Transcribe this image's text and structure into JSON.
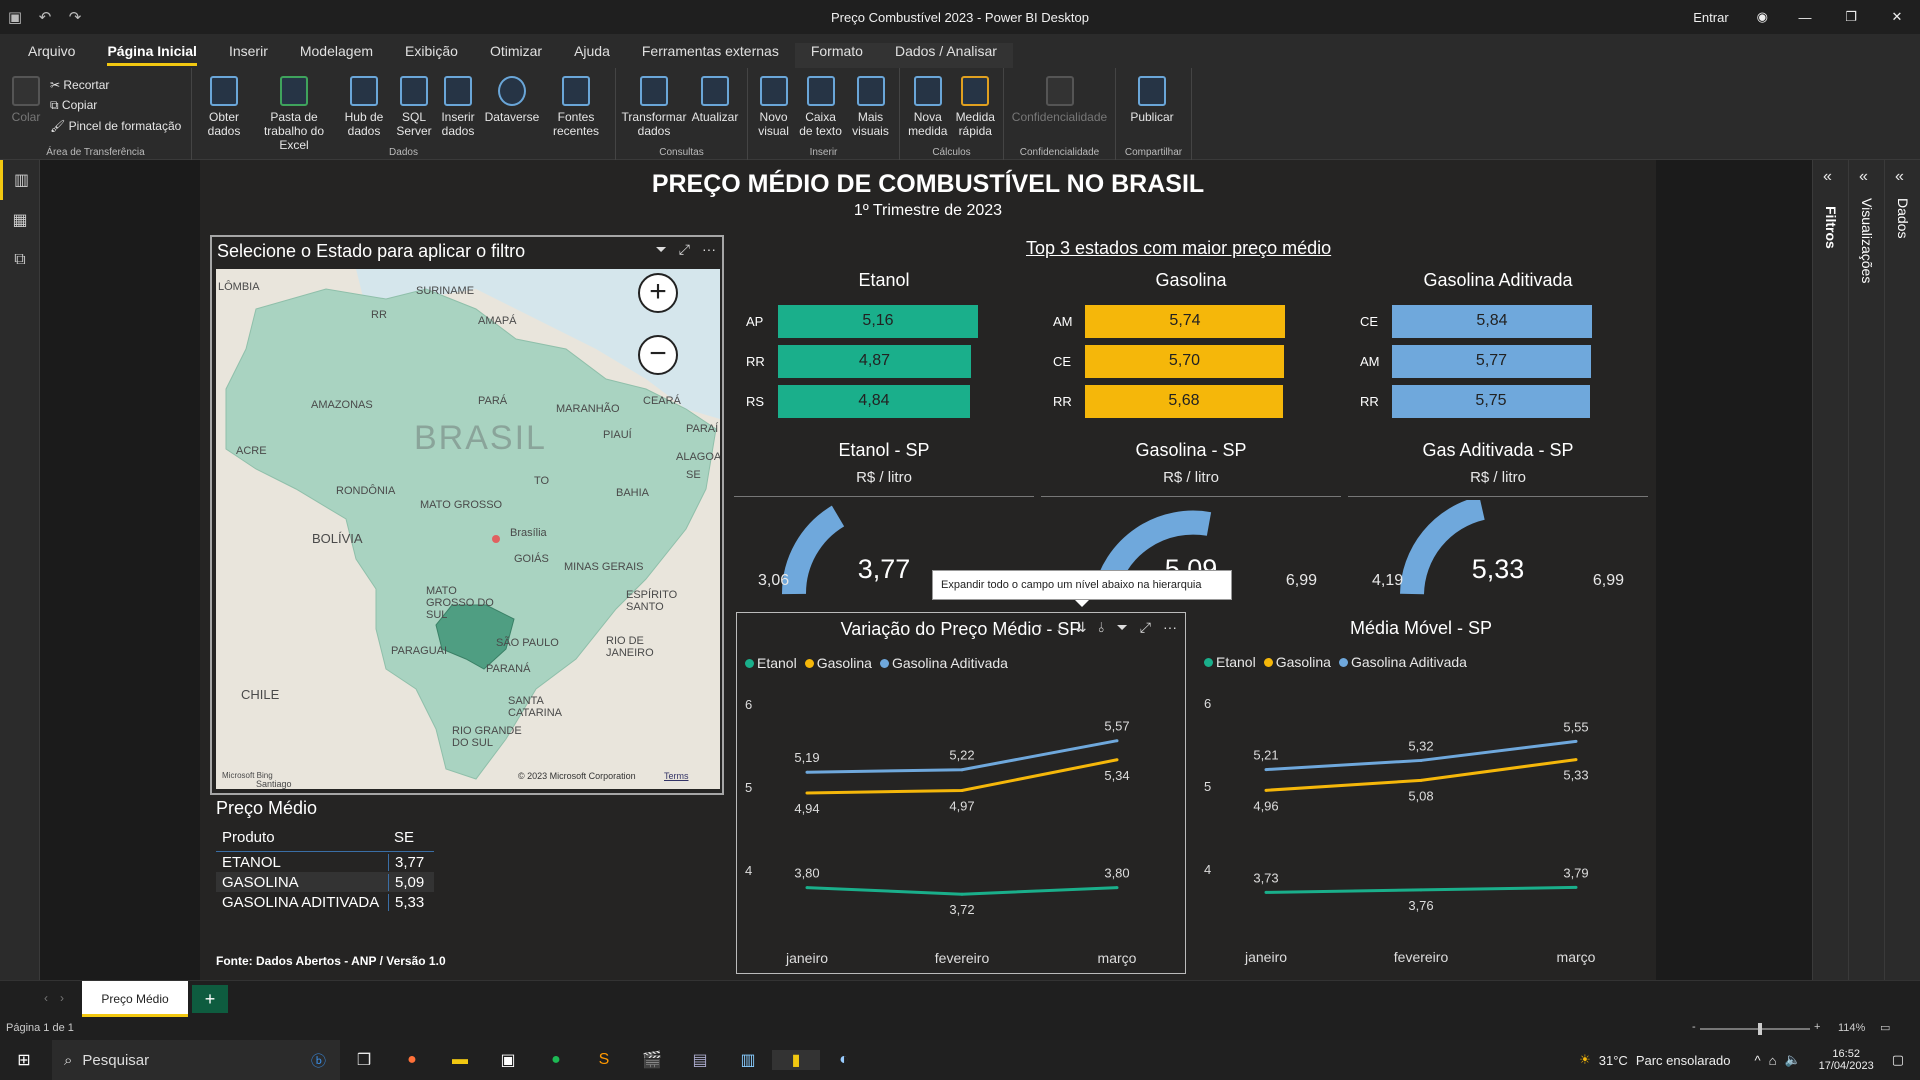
{
  "window": {
    "title": "Preço Combustível 2023 - Power BI Desktop",
    "signin": "Entrar"
  },
  "tabs": [
    "Arquivo",
    "Página Inicial",
    "Inserir",
    "Modelagem",
    "Exibição",
    "Otimizar",
    "Ajuda",
    "Ferramentas externas",
    "Formato",
    "Dados / Analisar"
  ],
  "ribbon": {
    "clipboard": {
      "paste": "Colar",
      "cut": "Recortar",
      "copy": "Copiar",
      "format_painter": "Pincel de formatação",
      "label": "Área de Transferência"
    },
    "data": {
      "get_data": "Obter dados",
      "excel": "Pasta de trabalho do Excel",
      "hub": "Hub de dados",
      "sql": "SQL Server",
      "enter": "Inserir dados",
      "dataverse": "Dataverse",
      "recent": "Fontes recentes",
      "label": "Dados"
    },
    "queries": {
      "transform": "Transformar dados",
      "refresh": "Atualizar",
      "label": "Consultas"
    },
    "insert": {
      "new_visual": "Novo visual",
      "textbox": "Caixa de texto",
      "more_visuals": "Mais visuais",
      "label": "Inserir"
    },
    "calc": {
      "new_measure": "Nova medida",
      "quick_measure": "Medida rápida",
      "label": "Cálculos"
    },
    "sensitivity": {
      "btn": "Confidencialidade",
      "label": "Confidencialidade"
    },
    "share": {
      "publish": "Publicar",
      "label": "Compartilhar"
    }
  },
  "report": {
    "title": "PREÇO MÉDIO DE COMBUSTÍVEL NO BRASIL",
    "subtitle": "1º Trimestre de 2023",
    "map": {
      "title": "Selecione o Estado para aplicar o filtro",
      "labels": [
        "LÔMBIA",
        "SURINAME",
        "RR",
        "AMAPÁ",
        "AMAZONAS",
        "PARÁ",
        "MARANHÃO",
        "CEARÁ",
        "BRASIL",
        "PIAUÍ",
        "ACRE",
        "RONDÔNIA",
        "TO",
        "BAHIA",
        "MATO GROSSO",
        "Brasília",
        "GOIÁS",
        "MINAS GERAIS",
        "BOLÍVIA",
        "MATO GROSSO DO SUL",
        "SÃO PAULO",
        "ESPÍRITO SANTO",
        "RIO DE JANEIRO",
        "PARAGUAI",
        "PARANÁ",
        "CHILE",
        "SANTA CATARINA",
        "RIO GRANDE DO SUL",
        "PARAÍ",
        "ALAGOAS",
        "SE",
        "Santiago"
      ],
      "credit": "© 2023 Microsoft Corporation",
      "terms": "Terms",
      "bing": "Microsoft Bing"
    },
    "table": {
      "title": "Preço Médio",
      "headers": [
        "Produto",
        "SE"
      ],
      "rows": [
        [
          "ETANOL",
          "3,77"
        ],
        [
          "GASOLINA",
          "5,09"
        ],
        [
          "GASOLINA ADITIVADA",
          "5,33"
        ]
      ]
    },
    "source": "Fonte: Dados Abertos - ANP / Versão 1.0",
    "top3": {
      "title": "Top 3 estados com maior preço médio",
      "columns": [
        {
          "name": "Etanol",
          "color": "#1aaf8b",
          "rows": [
            {
              "uf": "AP",
              "val": "5,16",
              "pct": 1.0
            },
            {
              "uf": "RR",
              "val": "4,87",
              "pct": 0.965
            },
            {
              "uf": "RS",
              "val": "4,84",
              "pct": 0.96
            }
          ]
        },
        {
          "name": "Gasolina",
          "color": "#f5b70a",
          "rows": [
            {
              "uf": "AM",
              "val": "5,74",
              "pct": 1.0
            },
            {
              "uf": "CE",
              "val": "5,70",
              "pct": 0.995
            },
            {
              "uf": "RR",
              "val": "5,68",
              "pct": 0.99
            }
          ]
        },
        {
          "name": "Gasolina Aditivada",
          "color": "#6fa8dc",
          "rows": [
            {
              "uf": "CE",
              "val": "5,84",
              "pct": 1.0
            },
            {
              "uf": "AM",
              "val": "5,77",
              "pct": 0.995
            },
            {
              "uf": "RR",
              "val": "5,75",
              "pct": 0.99
            }
          ]
        }
      ]
    },
    "gauges": [
      {
        "title": "Etanol - SP",
        "unit": "R$ / litro",
        "min": "3,06",
        "max": "",
        "value": "3,77"
      },
      {
        "title": "Gasolina - SP",
        "unit": "R$ / litro",
        "min": "",
        "max": "6,99",
        "value": "5,09"
      },
      {
        "title": "Gas Aditivada - SP",
        "unit": "R$ / litro",
        "min": "4,19",
        "max": "6,99",
        "value": "5,33"
      }
    ],
    "tooltip": "Expandir todo o campo um nível abaixo na hierarquia",
    "legend": [
      "Etanol",
      "Gasolina",
      "Gasolina Aditivada"
    ]
  },
  "chart_data": [
    {
      "type": "line",
      "title": "Variação do Preço Médio - SP",
      "x": [
        "janeiro",
        "fevereiro",
        "março"
      ],
      "ylim": [
        4,
        6
      ],
      "yticks": [
        "6",
        "5",
        "4"
      ],
      "series": [
        {
          "name": "Etanol",
          "color": "#1aaf8b",
          "values": [
            3.8,
            3.72,
            3.8
          ],
          "labels": [
            "3,80",
            "3,72",
            "3,80"
          ]
        },
        {
          "name": "Gasolina",
          "color": "#f5b70a",
          "values": [
            4.94,
            4.97,
            5.34
          ],
          "labels": [
            "4,94",
            "4,97",
            "5,34"
          ]
        },
        {
          "name": "Gasolina Aditivada",
          "color": "#6fa8dc",
          "values": [
            5.19,
            5.22,
            5.57
          ],
          "labels": [
            "5,19",
            "5,22",
            "5,57"
          ]
        }
      ]
    },
    {
      "type": "line",
      "title": "Média Móvel - SP",
      "x": [
        "janeiro",
        "fevereiro",
        "março"
      ],
      "ylim": [
        4,
        6
      ],
      "yticks": [
        "6",
        "5",
        "4"
      ],
      "series": [
        {
          "name": "Etanol",
          "color": "#1aaf8b",
          "values": [
            3.73,
            3.76,
            3.79
          ],
          "labels": [
            "3,73",
            "3,76",
            "3,79"
          ]
        },
        {
          "name": "Gasolina",
          "color": "#f5b70a",
          "values": [
            4.96,
            5.08,
            5.33
          ],
          "labels": [
            "4,96",
            "5,08",
            "5,33"
          ]
        },
        {
          "name": "Gasolina Aditivada",
          "color": "#6fa8dc",
          "values": [
            5.21,
            5.32,
            5.55
          ],
          "labels": [
            "5,21",
            "5,32",
            "5,55"
          ]
        }
      ]
    }
  ],
  "panes": {
    "filters": "Filtros",
    "visualizations": "Visualizações",
    "data": "Dados"
  },
  "pages": {
    "tab": "Preço Médio",
    "add": "+"
  },
  "status": {
    "page": "Página 1 de 1",
    "zoom": "114%"
  },
  "taskbar": {
    "search": "Pesquisar",
    "temp": "31°C",
    "weather": "Parc ensolarado",
    "time": "16:52",
    "date": "17/04/2023"
  }
}
